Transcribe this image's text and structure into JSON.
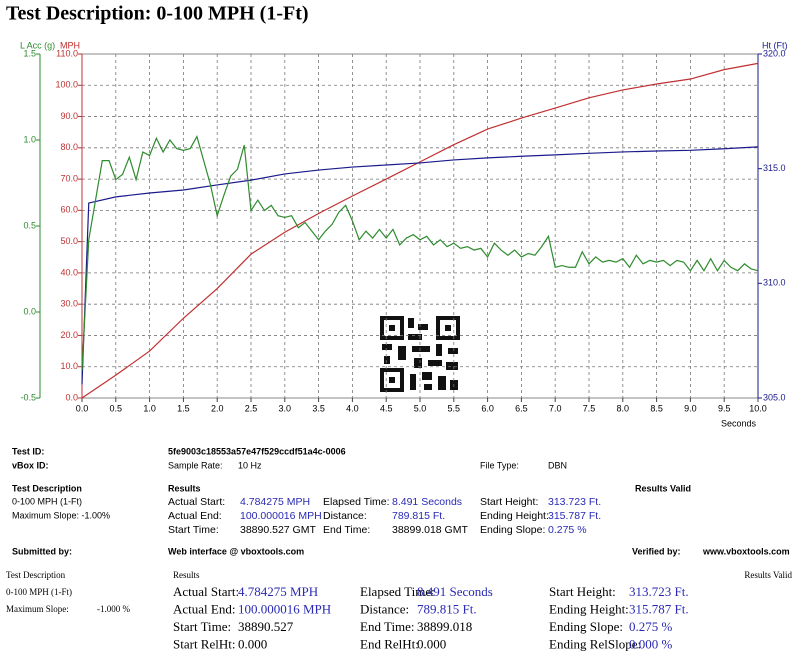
{
  "header": {
    "title": "Test Description: 0-100 MPH (1-Ft)"
  },
  "chart_data": {
    "type": "line",
    "y3_label": "L Acc (g)",
    "y_label": "MPH",
    "y2_label": "Ht (Ft)",
    "x_label": "Seconds",
    "xlim": [
      0,
      10
    ],
    "xticks": [
      {
        "value": 0,
        "label": "0.0"
      },
      0.5,
      {
        "value": 1,
        "label": "1.0"
      },
      1.5,
      {
        "value": 2,
        "label": "2.0"
      },
      2.5,
      {
        "value": 3,
        "label": "3.0"
      },
      3.5,
      {
        "value": 4,
        "label": "4.0"
      },
      4.5,
      {
        "value": 5,
        "label": "5.0"
      },
      5.5,
      {
        "value": 6,
        "label": "6.0"
      },
      6.5,
      {
        "value": 7,
        "label": "7.0"
      },
      7.5,
      {
        "value": 8,
        "label": "8.0"
      },
      8.5,
      {
        "value": 9,
        "label": "9.0"
      },
      9.5,
      {
        "value": 10,
        "label": "10.0"
      }
    ],
    "ylim": [
      0,
      110
    ],
    "yticks": [
      {
        "value": 0,
        "label": "0.0"
      },
      {
        "value": 10,
        "label": "10.0"
      },
      {
        "value": 20,
        "label": "20.0"
      },
      {
        "value": 30,
        "label": "30.0"
      },
      {
        "value": 40,
        "label": "40.0"
      },
      {
        "value": 50,
        "label": "50.0"
      },
      {
        "value": 60,
        "label": "60.0"
      },
      {
        "value": 70,
        "label": "70.0"
      },
      {
        "value": 80,
        "label": "80.0"
      },
      {
        "value": 90,
        "label": "90.0"
      },
      {
        "value": 100,
        "label": "100.0"
      },
      {
        "value": 110,
        "label": "110.0"
      }
    ],
    "y2lim": [
      305,
      320
    ],
    "y2ticks": [
      {
        "value": 305,
        "label": "305.0"
      },
      {
        "value": 310,
        "label": "310.0"
      },
      {
        "value": 315,
        "label": "315.0"
      },
      {
        "value": 320,
        "label": "320.0"
      }
    ],
    "y3lim": [
      -0.5,
      1.5
    ],
    "y3ticks": [
      -0.5,
      {
        "value": 0,
        "label": "0.0"
      },
      0.5,
      {
        "value": 1,
        "label": "1.0"
      },
      1.5
    ],
    "grid": true,
    "series": [
      {
        "name": "MPH",
        "color": "#c03030",
        "axis": "y",
        "x": [
          0,
          0.5,
          1,
          1.5,
          2,
          2.5,
          3,
          3.5,
          4,
          4.5,
          5,
          5.5,
          6,
          6.5,
          7,
          7.5,
          8,
          8.5,
          9,
          9.5,
          10
        ],
        "values": [
          0,
          7.3,
          15,
          25.5,
          35,
          46,
          53,
          59,
          64.6,
          70,
          75.5,
          81,
          86,
          89.5,
          92.7,
          96,
          98.5,
          100.4,
          102,
          105,
          107
        ]
      },
      {
        "name": "Ht (Ft)",
        "color": "#1a1a8c",
        "axis": "y2",
        "x": [
          0,
          0.1,
          0.5,
          1,
          1.5,
          2,
          2.5,
          3,
          3.5,
          4,
          4.5,
          5,
          5.5,
          6,
          6.5,
          7,
          7.5,
          8,
          8.5,
          9,
          9.5,
          10
        ],
        "values": [
          305.6,
          313.5,
          313.77,
          313.94,
          314.07,
          314.29,
          314.5,
          314.77,
          314.94,
          315.07,
          315.16,
          315.25,
          315.38,
          315.47,
          315.54,
          315.6,
          315.67,
          315.73,
          315.77,
          315.8,
          315.87,
          315.95
        ]
      },
      {
        "name": "L Acc (g)",
        "color": "#2e8b2e",
        "axis": "y3",
        "x": [
          0,
          0.1,
          0.2,
          0.3,
          0.4,
          0.5,
          0.6,
          0.7,
          0.8,
          0.9,
          1,
          1.1,
          1.2,
          1.3,
          1.4,
          1.5,
          1.6,
          1.7,
          1.8,
          1.9,
          2,
          2.1,
          2.2,
          2.3,
          2.4,
          2.5,
          2.6,
          2.7,
          2.8,
          2.9,
          3,
          3.1,
          3.2,
          3.3,
          3.4,
          3.5,
          3.6,
          3.7,
          3.8,
          3.9,
          4,
          4.1,
          4.2,
          4.3,
          4.4,
          4.5,
          4.6,
          4.7,
          4.8,
          4.9,
          5,
          5.1,
          5.2,
          5.3,
          5.4,
          5.5,
          5.6,
          5.7,
          5.8,
          5.9,
          6,
          6.1,
          6.2,
          6.3,
          6.4,
          6.5,
          6.6,
          6.7,
          6.8,
          6.9,
          7,
          7.1,
          7.2,
          7.3,
          7.4,
          7.5,
          7.6,
          7.7,
          7.8,
          7.9,
          8,
          8.1,
          8.2,
          8.3,
          8.4,
          8.5,
          8.6,
          8.7,
          8.8,
          8.9,
          9,
          9.1,
          9.2,
          9.3,
          9.4,
          9.5,
          9.6,
          9.7,
          9.8,
          9.9,
          10
        ],
        "values": [
          -0.34,
          0.42,
          0.65,
          0.88,
          0.88,
          0.77,
          0.8,
          0.9,
          0.77,
          0.93,
          0.91,
          1.01,
          0.93,
          1,
          0.95,
          0.94,
          0.95,
          1.02,
          0.88,
          0.74,
          0.56,
          0.68,
          0.79,
          0.83,
          0.97,
          0.59,
          0.65,
          0.59,
          0.62,
          0.56,
          0.55,
          0.56,
          0.49,
          0.52,
          0.47,
          0.42,
          0.47,
          0.51,
          0.58,
          0.62,
          0.53,
          0.42,
          0.47,
          0.43,
          0.48,
          0.43,
          0.48,
          0.39,
          0.43,
          0.45,
          0.42,
          0.44,
          0.39,
          0.42,
          0.38,
          0.4,
          0.37,
          0.38,
          0.36,
          0.37,
          0.32,
          0.4,
          0.36,
          0.33,
          0.36,
          0.32,
          0.34,
          0.33,
          0.38,
          0.44,
          0.26,
          0.27,
          0.26,
          0.26,
          0.35,
          0.28,
          0.32,
          0.29,
          0.3,
          0.29,
          0.31,
          0.26,
          0.33,
          0.28,
          0.3,
          0.29,
          0.3,
          0.27,
          0.3,
          0.29,
          0.24,
          0.3,
          0.24,
          0.31,
          0.24,
          0.3,
          0.26,
          0.24,
          0.28,
          0.25,
          0.24
        ]
      }
    ]
  },
  "info": {
    "test_id_label": "Test ID:",
    "test_id": "5fe9003c18553a57e47f529ccdf51a4c-0006",
    "vbox_id_label": "vBox ID:",
    "sample_rate_label": "Sample Rate:",
    "sample_rate": "10 Hz",
    "file_type_label": "File Type:",
    "file_type": "DBN"
  },
  "summary": {
    "description_heading": "Test Description",
    "description": "0-100 MPH (1-Ft)",
    "max_slope": "Maximum Slope: -1.00%",
    "results_heading": "Results",
    "valid": "Results Valid",
    "fields": [
      {
        "label": "Actual Start:",
        "value": "4.784275 MPH"
      },
      {
        "label": "Elapsed Time:",
        "value": "8.491 Seconds"
      },
      {
        "label": "Start Height:",
        "value": "313.723 Ft."
      },
      {
        "label": "Actual End:",
        "value": "100.000016 MPH"
      },
      {
        "label": "Distance:",
        "value": "789.815 Ft."
      },
      {
        "label": "Ending Height:",
        "value": "315.787 Ft."
      },
      {
        "label": "Start Time:",
        "value": "38890.527 GMT"
      },
      {
        "label": "End Time:",
        "value": "38899.018 GMT"
      },
      {
        "label": "Ending Slope:",
        "value": "0.275 %"
      }
    ]
  },
  "footer": {
    "submitted_label": "Submitted by:",
    "submitted": "Web interface @ vboxtools.com",
    "verified_label": "Verified by:",
    "verified": "www.vboxtools.com"
  },
  "detail": {
    "description_heading": "Test Description",
    "description": "0-100 MPH (1-Ft)",
    "max_slope_label": "Maximum Slope:",
    "max_slope": "-1.000 %",
    "results_heading": "Results",
    "valid": "Results Valid",
    "fields": [
      {
        "label": "Actual Start:",
        "value": "4.784275 MPH"
      },
      {
        "label": "Elapsed Time:",
        "value": "8.491 Seconds"
      },
      {
        "label": "Start Height:",
        "value": "313.723 Ft."
      },
      {
        "label": "Actual End:",
        "value": "100.000016 MPH"
      },
      {
        "label": "Distance:",
        "value": "789.815 Ft."
      },
      {
        "label": "Ending Height:",
        "value": "315.787 Ft."
      },
      {
        "label": "Start Time:",
        "value": "38890.527"
      },
      {
        "label": "End Time:",
        "value": "38899.018"
      },
      {
        "label": "Ending Slope:",
        "value": "0.275 %"
      },
      {
        "label": "Start RelHt:",
        "value": "0.000"
      },
      {
        "label": "End RelHt:",
        "value": "0.000"
      },
      {
        "label": "Ending RelSlope:",
        "value": "0.000 %"
      }
    ]
  }
}
